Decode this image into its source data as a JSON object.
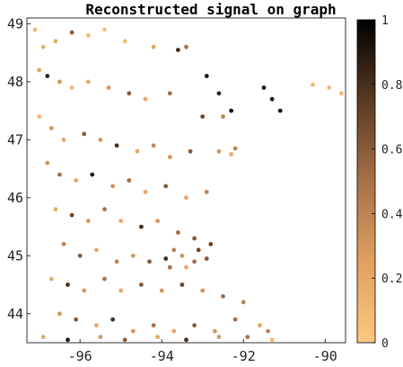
{
  "chart_data": {
    "type": "scatter",
    "title": "Reconstructed signal on graph",
    "xlabel": "",
    "ylabel": "",
    "xlim": [
      -97.3,
      -89.5
    ],
    "ylim": [
      43.5,
      49.1
    ],
    "x_ticks": [
      -96,
      -94,
      -92,
      -90
    ],
    "x_tick_labels": [
      "-96",
      "-94",
      "-92",
      "-90"
    ],
    "y_ticks": [
      44,
      45,
      46,
      47,
      48,
      49
    ],
    "y_tick_labels": [
      "44",
      "45",
      "46",
      "47",
      "48",
      "49"
    ],
    "grid": false,
    "colorbar": {
      "range": [
        0,
        1
      ],
      "ticks": [
        0,
        0.2,
        0.4,
        0.6,
        0.8,
        1
      ],
      "tick_labels": [
        "0",
        "0.2",
        "0.4",
        "0.6",
        "0.8",
        "1"
      ],
      "colormap": "copper-reversed",
      "low_color": "#ffc77f",
      "high_color": "#000000",
      "position": "right"
    },
    "marker_color_scale": "value",
    "points": [
      [
        -97.1,
        48.9,
        0.1
      ],
      [
        -96.9,
        48.6,
        0.15
      ],
      [
        -96.6,
        48.7,
        0.2
      ],
      [
        -96.2,
        48.85,
        0.6
      ],
      [
        -95.8,
        48.8,
        0.1
      ],
      [
        -95.4,
        48.9,
        0.05
      ],
      [
        -94.9,
        48.7,
        0.1
      ],
      [
        -94.2,
        48.6,
        0.2
      ],
      [
        -93.6,
        48.55,
        0.8
      ],
      [
        -93.4,
        48.6,
        0.5
      ],
      [
        -97.0,
        48.2,
        0.2
      ],
      [
        -96.8,
        48.1,
        0.85
      ],
      [
        -96.5,
        48.0,
        0.3
      ],
      [
        -96.2,
        47.9,
        0.1
      ],
      [
        -95.8,
        48.0,
        0.2
      ],
      [
        -95.3,
        47.9,
        0.3
      ],
      [
        -94.8,
        47.8,
        0.6
      ],
      [
        -94.4,
        47.7,
        0.2
      ],
      [
        -93.8,
        47.8,
        0.5
      ],
      [
        -92.9,
        48.1,
        0.9
      ],
      [
        -92.6,
        47.8,
        0.85
      ],
      [
        -92.3,
        47.5,
        0.95
      ],
      [
        -91.5,
        47.9,
        0.9
      ],
      [
        -91.3,
        47.7,
        0.9
      ],
      [
        -91.1,
        47.5,
        0.95
      ],
      [
        -90.3,
        47.95,
        0.1
      ],
      [
        -89.9,
        47.9,
        0.1
      ],
      [
        -89.6,
        47.8,
        0.1
      ],
      [
        -92.5,
        47.4,
        0.4
      ],
      [
        -93.0,
        47.4,
        0.7
      ],
      [
        -97.0,
        47.4,
        0.1
      ],
      [
        -96.7,
        47.2,
        0.3
      ],
      [
        -96.4,
        47.0,
        0.2
      ],
      [
        -95.9,
        47.1,
        0.6
      ],
      [
        -95.5,
        47.0,
        0.3
      ],
      [
        -95.1,
        46.9,
        0.8
      ],
      [
        -94.6,
        46.8,
        0.2
      ],
      [
        -94.2,
        46.9,
        0.4
      ],
      [
        -93.8,
        46.7,
        0.3
      ],
      [
        -93.3,
        46.8,
        0.6
      ],
      [
        -92.6,
        46.8,
        0.3
      ],
      [
        -92.3,
        46.75,
        0.2
      ],
      [
        -92.2,
        46.85,
        0.4
      ],
      [
        -96.8,
        46.6,
        0.3
      ],
      [
        -96.5,
        46.4,
        0.5
      ],
      [
        -96.1,
        46.3,
        0.2
      ],
      [
        -95.7,
        46.4,
        0.9
      ],
      [
        -95.2,
        46.2,
        0.3
      ],
      [
        -94.8,
        46.3,
        0.5
      ],
      [
        -94.4,
        46.1,
        0.2
      ],
      [
        -93.9,
        46.2,
        0.6
      ],
      [
        -93.4,
        46.0,
        0.2
      ],
      [
        -92.9,
        46.1,
        0.4
      ],
      [
        -96.6,
        45.8,
        0.2
      ],
      [
        -96.2,
        45.7,
        0.7
      ],
      [
        -95.8,
        45.6,
        0.3
      ],
      [
        -95.4,
        45.8,
        0.5
      ],
      [
        -95.0,
        45.6,
        0.2
      ],
      [
        -94.5,
        45.5,
        0.8
      ],
      [
        -94.1,
        45.6,
        0.3
      ],
      [
        -93.6,
        45.4,
        0.5
      ],
      [
        -93.2,
        45.3,
        0.6
      ],
      [
        -92.8,
        45.2,
        0.7
      ],
      [
        -96.4,
        45.2,
        0.4
      ],
      [
        -96.0,
        45.0,
        0.6
      ],
      [
        -95.6,
        45.1,
        0.2
      ],
      [
        -95.1,
        44.9,
        0.4
      ],
      [
        -94.7,
        45.0,
        0.3
      ],
      [
        -94.3,
        44.9,
        0.6
      ],
      [
        -93.9,
        44.95,
        0.8
      ],
      [
        -93.5,
        45.0,
        0.3
      ],
      [
        -93.2,
        44.9,
        0.5
      ],
      [
        -92.9,
        44.95,
        0.6
      ],
      [
        -93.7,
        45.1,
        0.4
      ],
      [
        -93.4,
        44.8,
        0.2
      ],
      [
        -93.1,
        45.1,
        0.7
      ],
      [
        -93.8,
        44.8,
        0.5
      ],
      [
        -96.7,
        44.6,
        0.2
      ],
      [
        -96.3,
        44.5,
        0.8
      ],
      [
        -95.9,
        44.4,
        0.3
      ],
      [
        -95.4,
        44.6,
        0.5
      ],
      [
        -95.0,
        44.4,
        0.2
      ],
      [
        -94.5,
        44.5,
        0.6
      ],
      [
        -94.0,
        44.4,
        0.3
      ],
      [
        -93.5,
        44.5,
        0.7
      ],
      [
        -93.0,
        44.4,
        0.3
      ],
      [
        -92.5,
        44.3,
        0.5
      ],
      [
        -92.0,
        44.2,
        0.4
      ],
      [
        -96.5,
        44.0,
        0.3
      ],
      [
        -96.1,
        43.9,
        0.6
      ],
      [
        -95.6,
        43.8,
        0.2
      ],
      [
        -95.2,
        43.9,
        0.8
      ],
      [
        -94.7,
        43.7,
        0.3
      ],
      [
        -94.2,
        43.8,
        0.5
      ],
      [
        -93.7,
        43.7,
        0.2
      ],
      [
        -93.2,
        43.8,
        0.6
      ],
      [
        -92.7,
        43.7,
        0.3
      ],
      [
        -92.2,
        43.9,
        0.5
      ],
      [
        -91.6,
        43.8,
        0.2
      ],
      [
        -91.4,
        43.7,
        0.4
      ],
      [
        -96.9,
        43.6,
        0.2
      ],
      [
        -96.3,
        43.55,
        0.9
      ],
      [
        -95.5,
        43.6,
        0.3
      ],
      [
        -94.9,
        43.55,
        0.6
      ],
      [
        -94.1,
        43.6,
        0.2
      ],
      [
        -93.4,
        43.55,
        0.8
      ],
      [
        -92.6,
        43.6,
        0.3
      ],
      [
        -91.9,
        43.6,
        0.5
      ],
      [
        -91.3,
        43.55,
        0.1
      ]
    ]
  }
}
